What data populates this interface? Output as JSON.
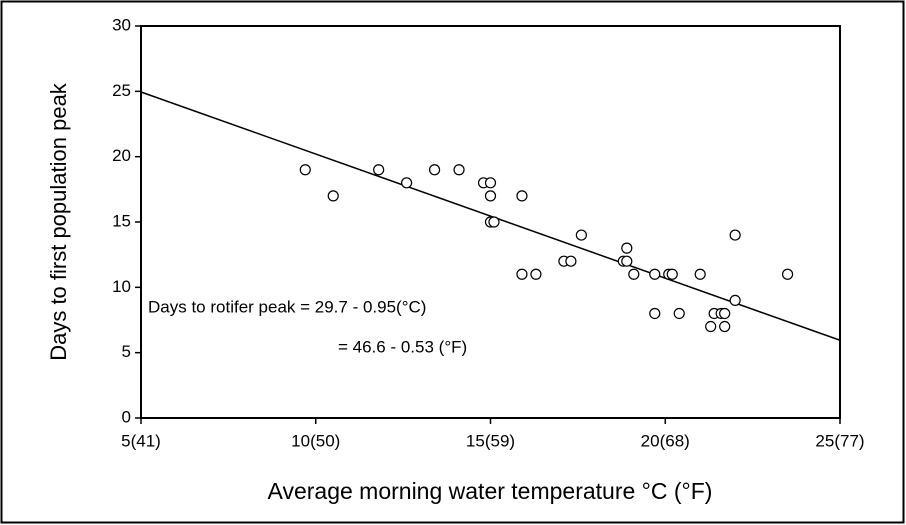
{
  "chart_data": {
    "type": "scatter",
    "x_label": "Average morning water temperature °C (°F)",
    "y_label": "Days to first population peak",
    "x": [
      9.7,
      10.5,
      11.8,
      12.6,
      13.4,
      14.1,
      14.8,
      15.0,
      15.0,
      15.0,
      15.1,
      15.9,
      15.9,
      16.3,
      17.6,
      17.1,
      17.3,
      18.8,
      18.9,
      18.9,
      19.1,
      19.7,
      20.1,
      20.2,
      21.0,
      19.7,
      20.4,
      21.3,
      21.4,
      21.6,
      21.7,
      21.7,
      22.0,
      22.0,
      23.5
    ],
    "values": [
      19,
      17,
      19,
      18,
      19,
      19,
      18,
      18,
      17,
      15,
      15,
      17,
      11,
      11,
      14,
      12,
      12,
      12,
      12,
      13,
      11,
      11,
      11,
      11,
      11,
      8,
      8,
      7,
      8,
      8,
      8,
      7,
      14,
      9,
      11
    ],
    "fit_line": {
      "x": [
        5,
        25
      ],
      "values": [
        24.95,
        5.95
      ]
    },
    "annotations": [
      "Days to rotifer peak = 29.7 - 0.95(°C)",
      "= 46.6 - 0.53 (°F)"
    ],
    "xlim": [
      5,
      25
    ],
    "ylim": [
      0,
      30
    ],
    "xticks": [
      {
        "value": 5,
        "label": "5(41)"
      },
      {
        "value": 10,
        "label": "10(50)"
      },
      {
        "value": 15,
        "label": "15(59)"
      },
      {
        "value": 20,
        "label": "20(68)"
      },
      {
        "value": 25,
        "label": "25(77)"
      }
    ],
    "yticks": [
      0,
      5,
      10,
      15,
      20,
      25,
      30
    ],
    "color": "#000000"
  }
}
